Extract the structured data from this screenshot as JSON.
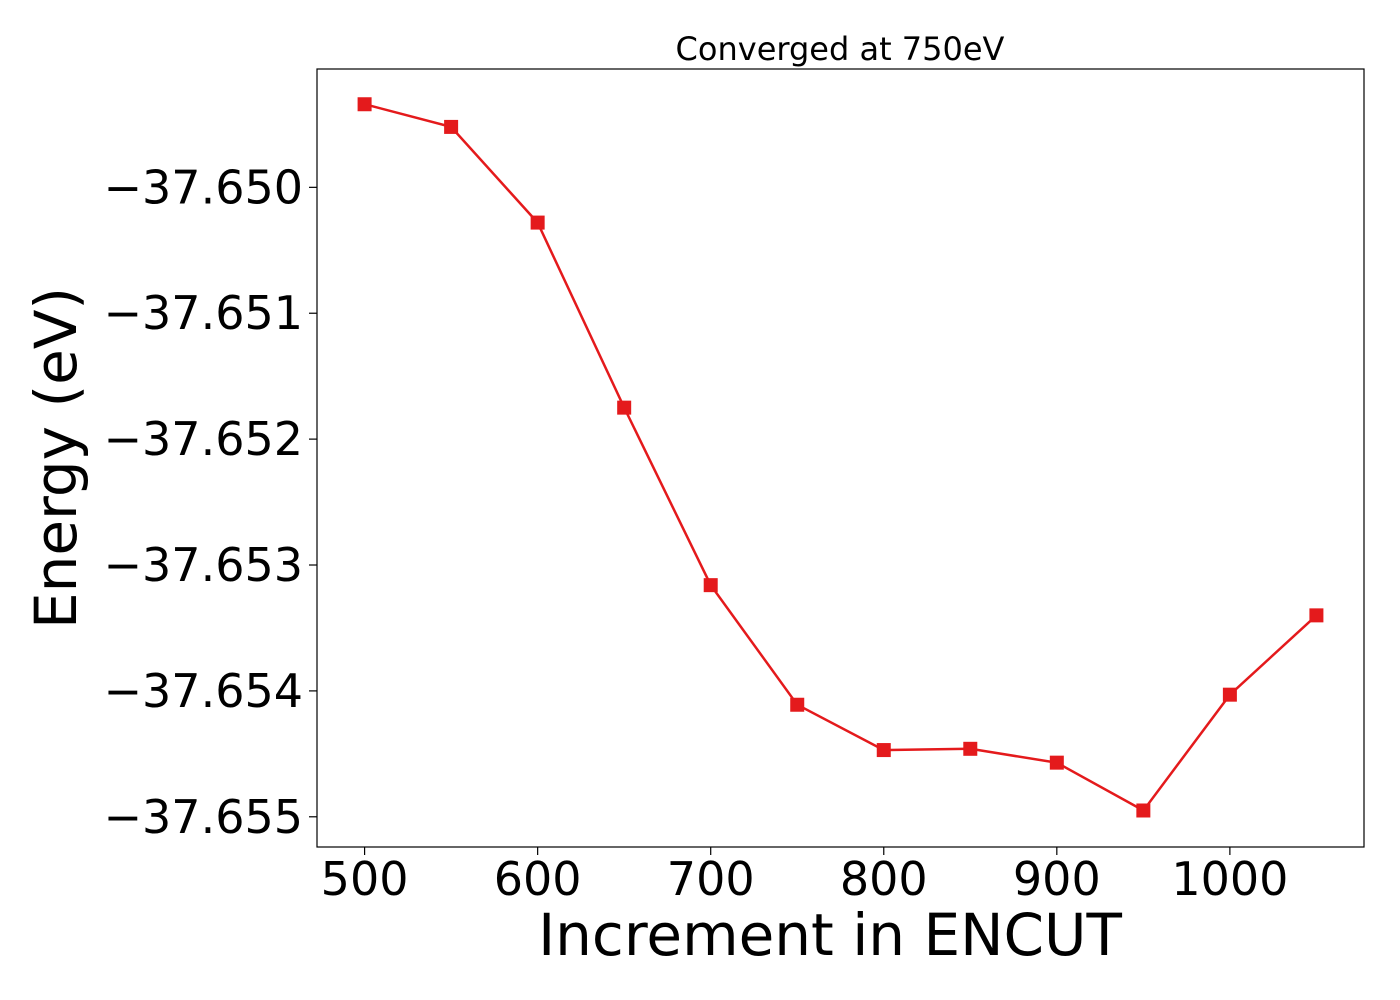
{
  "chart_data": {
    "type": "line",
    "title": "Converged at 750eV",
    "xlabel": "Increment in ENCUT",
    "ylabel": "Energy (eV)",
    "x": [
      500,
      550,
      600,
      650,
      700,
      750,
      800,
      850,
      900,
      950,
      1000,
      1050
    ],
    "series": [
      {
        "values": [
          -37.64934,
          -37.64952,
          -37.65028,
          -37.65175,
          -37.65316,
          -37.65411,
          -37.65447,
          -37.65446,
          -37.65457,
          -37.65495,
          -37.65403,
          -37.6534
        ],
        "color": "#e41a1c",
        "marker": "square"
      }
    ],
    "xticks": [
      500,
      600,
      700,
      800,
      900,
      1000
    ],
    "xtick_labels": [
      "500",
      "600",
      "700",
      "800",
      "900",
      "1000"
    ],
    "yticks": [
      -37.65,
      -37.651,
      -37.652,
      -37.653,
      -37.654,
      -37.655
    ],
    "ytick_labels": [
      "−37.650",
      "−37.651",
      "−37.652",
      "−37.653",
      "−37.654",
      "−37.655"
    ],
    "xlim": [
      472.5,
      1077.5
    ],
    "ylim": [
      -37.65524,
      -37.64906
    ],
    "grid": false,
    "legend": "none"
  }
}
